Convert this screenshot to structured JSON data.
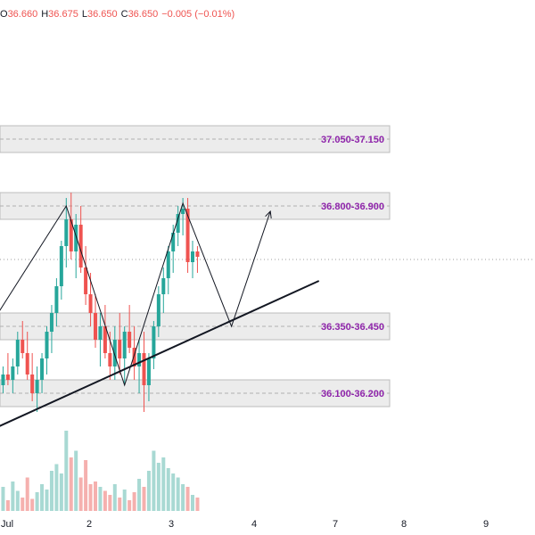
{
  "ohlc": {
    "open_label": "O",
    "open": "36.660",
    "high_label": "H",
    "high": "36.675",
    "low_label": "L",
    "low": "36.650",
    "close_label": "C",
    "close": "36.650",
    "change": "−0.005 (−0.01%)"
  },
  "colors": {
    "up": "#26a69a",
    "down": "#ef5350",
    "up_volume": "#a8d9d3",
    "down_volume": "#f5b0ae",
    "zone_fill": "#e6e6e6",
    "zone_border": "#bdbdbd",
    "zone_label": "#8e24aa",
    "drawing": "#131722",
    "ohlc_value": "#ef5350"
  },
  "chart_data": {
    "type": "candlestick",
    "x_tick_labels": [
      "Jul",
      "2",
      "3",
      "4",
      "7",
      "8",
      "9"
    ],
    "zones": [
      {
        "label": "37.050-37.150",
        "low": 37.05,
        "high": 37.15
      },
      {
        "label": "36.800-36.900",
        "low": 36.8,
        "high": 36.9
      },
      {
        "label": "36.350-36.450",
        "low": 36.35,
        "high": 36.45
      },
      {
        "label": "36.100-36.200",
        "low": 36.1,
        "high": 36.2
      }
    ],
    "current_price": 36.65,
    "candles": [
      [
        36.15,
        36.2,
        36.1,
        36.18
      ],
      [
        36.18,
        36.25,
        36.15,
        36.22
      ],
      [
        36.22,
        36.3,
        36.18,
        36.2
      ],
      [
        36.2,
        36.28,
        36.15,
        36.25
      ],
      [
        36.25,
        36.38,
        36.22,
        36.35
      ],
      [
        36.35,
        36.42,
        36.28,
        36.3
      ],
      [
        36.3,
        36.38,
        36.2,
        36.22
      ],
      [
        36.22,
        36.3,
        36.12,
        36.15
      ],
      [
        36.15,
        36.25,
        36.08,
        36.2
      ],
      [
        36.2,
        36.3,
        36.15,
        36.28
      ],
      [
        36.28,
        36.4,
        36.22,
        36.38
      ],
      [
        36.38,
        36.48,
        36.3,
        36.45
      ],
      [
        36.45,
        36.58,
        36.4,
        36.55
      ],
      [
        36.55,
        36.72,
        36.5,
        36.7
      ],
      [
        36.7,
        36.88,
        36.62,
        36.8
      ],
      [
        36.8,
        36.9,
        36.65,
        36.68
      ],
      [
        36.68,
        36.82,
        36.58,
        36.78
      ],
      [
        36.78,
        36.85,
        36.6,
        36.62
      ],
      [
        36.62,
        36.7,
        36.48,
        36.52
      ],
      [
        36.52,
        36.6,
        36.4,
        36.45
      ],
      [
        36.45,
        36.52,
        36.32,
        36.35
      ],
      [
        36.35,
        36.45,
        36.25,
        36.4
      ],
      [
        36.4,
        36.48,
        36.28,
        36.3
      ],
      [
        36.3,
        36.38,
        36.2,
        36.25
      ],
      [
        36.25,
        36.4,
        36.2,
        36.35
      ],
      [
        36.35,
        36.45,
        36.22,
        36.28
      ],
      [
        36.28,
        36.4,
        36.18,
        36.38
      ],
      [
        36.38,
        36.48,
        36.3,
        36.32
      ],
      [
        36.32,
        36.4,
        36.2,
        36.25
      ],
      [
        36.25,
        36.35,
        36.15,
        36.3
      ],
      [
        36.3,
        36.38,
        36.08,
        36.18
      ],
      [
        36.18,
        36.3,
        36.12,
        36.28
      ],
      [
        36.28,
        36.42,
        36.24,
        36.4
      ],
      [
        36.4,
        36.55,
        36.36,
        36.52
      ],
      [
        36.52,
        36.62,
        36.45,
        36.58
      ],
      [
        36.58,
        36.7,
        36.52,
        36.68
      ],
      [
        36.68,
        36.78,
        36.6,
        36.75
      ],
      [
        36.75,
        36.85,
        36.7,
        36.82
      ],
      [
        36.82,
        36.88,
        36.74,
        36.84
      ],
      [
        36.84,
        36.88,
        36.6,
        36.64
      ],
      [
        36.64,
        36.72,
        36.58,
        36.68
      ],
      [
        36.68,
        36.7,
        36.6,
        36.66
      ]
    ],
    "volumes": [
      12,
      18,
      8,
      22,
      15,
      10,
      25,
      9,
      14,
      20,
      16,
      30,
      35,
      28,
      60,
      40,
      45,
      25,
      38,
      20,
      22,
      18,
      15,
      12,
      20,
      10,
      16,
      8,
      14,
      24,
      18,
      30,
      45,
      36,
      40,
      32,
      28,
      25,
      20,
      18,
      12,
      10
    ],
    "drawings": {
      "zigzag": [
        {
          "t": 0,
          "p": 36.45
        },
        {
          "t": 14,
          "p": 36.85
        },
        {
          "t": 26,
          "p": 36.18
        },
        {
          "t": 38,
          "p": 36.86
        },
        {
          "t": 48,
          "p": 36.4
        },
        {
          "t": 56,
          "p": 36.83
        }
      ],
      "trendline": [
        {
          "t": -3,
          "p": 36.0
        },
        {
          "t": 66,
          "p": 36.57
        }
      ]
    },
    "ylim": [
      35.62,
      37.62
    ]
  }
}
